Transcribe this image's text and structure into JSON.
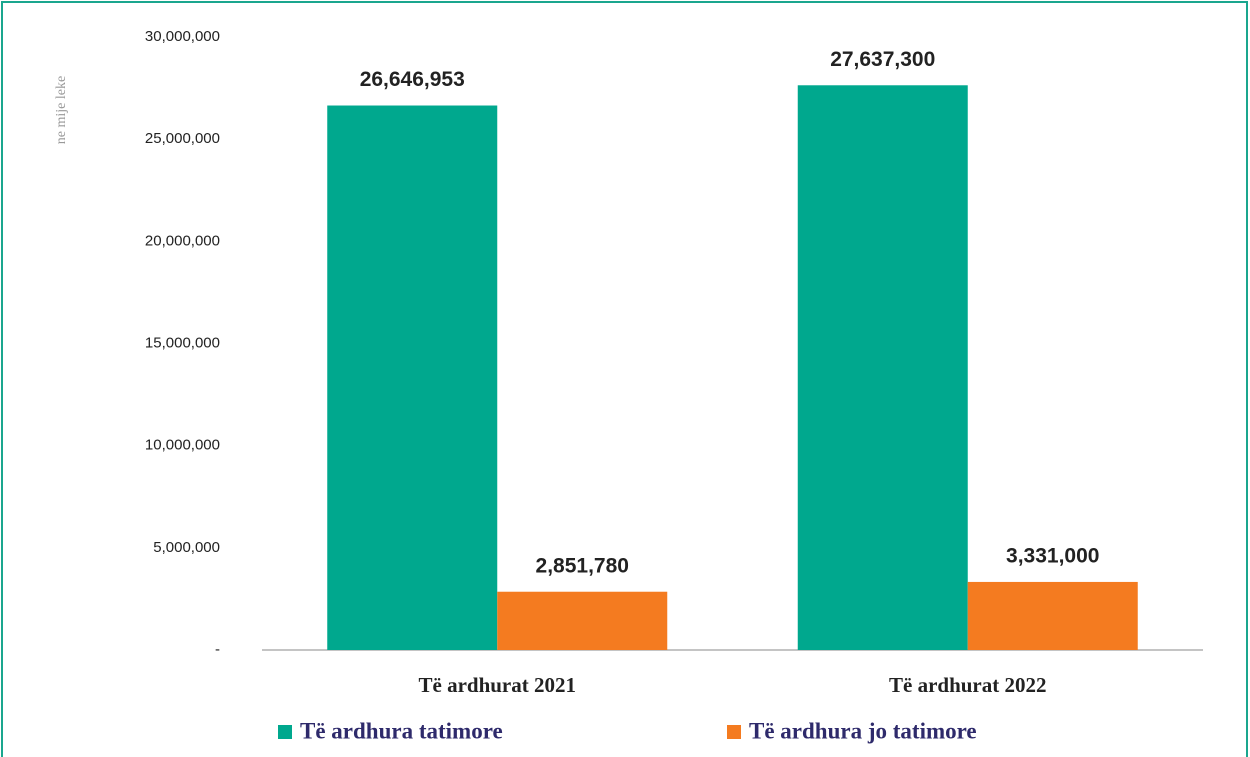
{
  "chart_data": {
    "type": "bar",
    "y_label": "ne mije leke",
    "categories": [
      "Të ardhurat 2021",
      "Të ardhurat 2022"
    ],
    "series": [
      {
        "name": "Të ardhura tatimore",
        "color": "#00a88e",
        "values": [
          26646953,
          27637300
        ],
        "value_labels": [
          "26,646,953",
          "27,637,300"
        ]
      },
      {
        "name": "Të ardhura jo tatimore",
        "color": "#f47b20",
        "values": [
          2851780,
          3331000
        ],
        "value_labels": [
          "2,851,780",
          "3,331,000"
        ]
      }
    ],
    "ylim": [
      0,
      30000000
    ],
    "yticks": [
      {
        "value": 0,
        "label": "-"
      },
      {
        "value": 5000000,
        "label": "5,000,000"
      },
      {
        "value": 10000000,
        "label": "10,000,000"
      },
      {
        "value": 15000000,
        "label": "15,000,000"
      },
      {
        "value": 20000000,
        "label": "20,000,000"
      },
      {
        "value": 25000000,
        "label": "25,000,000"
      },
      {
        "value": 30000000,
        "label": "30,000,000"
      }
    ],
    "grid": false,
    "legend": "bottom"
  }
}
